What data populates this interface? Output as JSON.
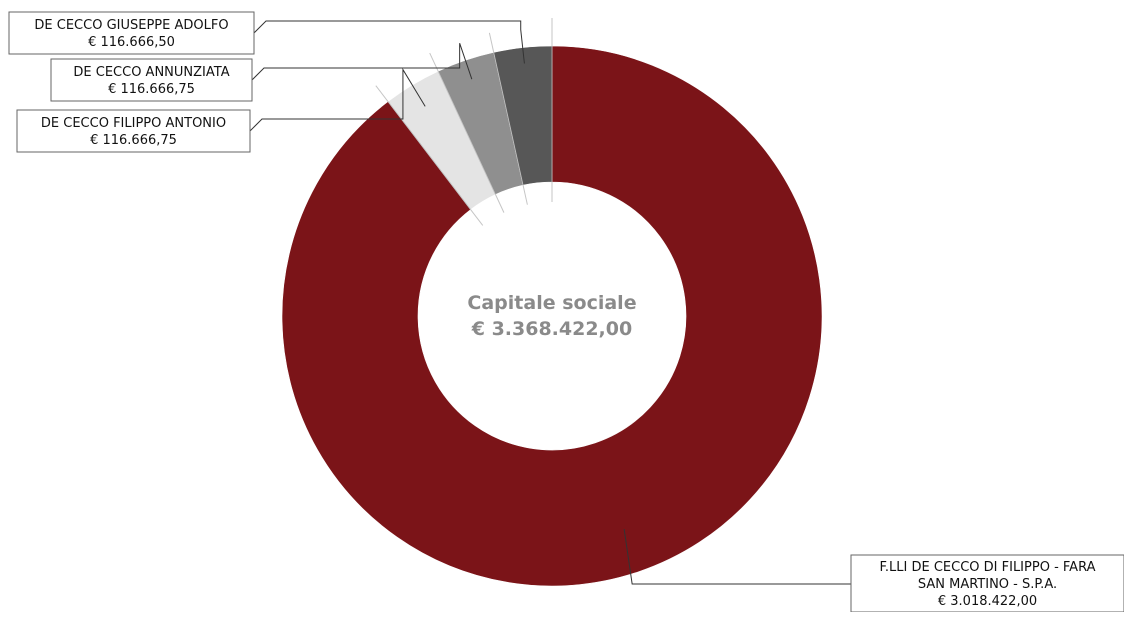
{
  "chart_data": {
    "type": "pie",
    "variant": "donut",
    "center_label": {
      "title": "Capitale sociale",
      "value": "€ 3.368.422,00"
    },
    "total": 3368422.0,
    "slices": [
      {
        "name_lines": [
          "F.LLI DE CECCO DI FILIPPO - FARA",
          "SAN MARTINO - S.P.A."
        ],
        "value": 3018422.0,
        "value_label": "€ 3.018.422,00",
        "color": "#7b1418"
      },
      {
        "name_lines": [
          "DE CECCO FILIPPO ANTONIO"
        ],
        "value": 116666.75,
        "value_label": "€ 116.666,75",
        "color": "#e4e4e4"
      },
      {
        "name_lines": [
          "DE CECCO ANNUNZIATA"
        ],
        "value": 116666.75,
        "value_label": "€ 116.666,75",
        "color": "#8f8f8f"
      },
      {
        "name_lines": [
          "DE CECCO GIUSEPPE ADOLFO"
        ],
        "value": 116666.5,
        "value_label": "€ 116.666,50",
        "color": "#575757"
      }
    ]
  }
}
